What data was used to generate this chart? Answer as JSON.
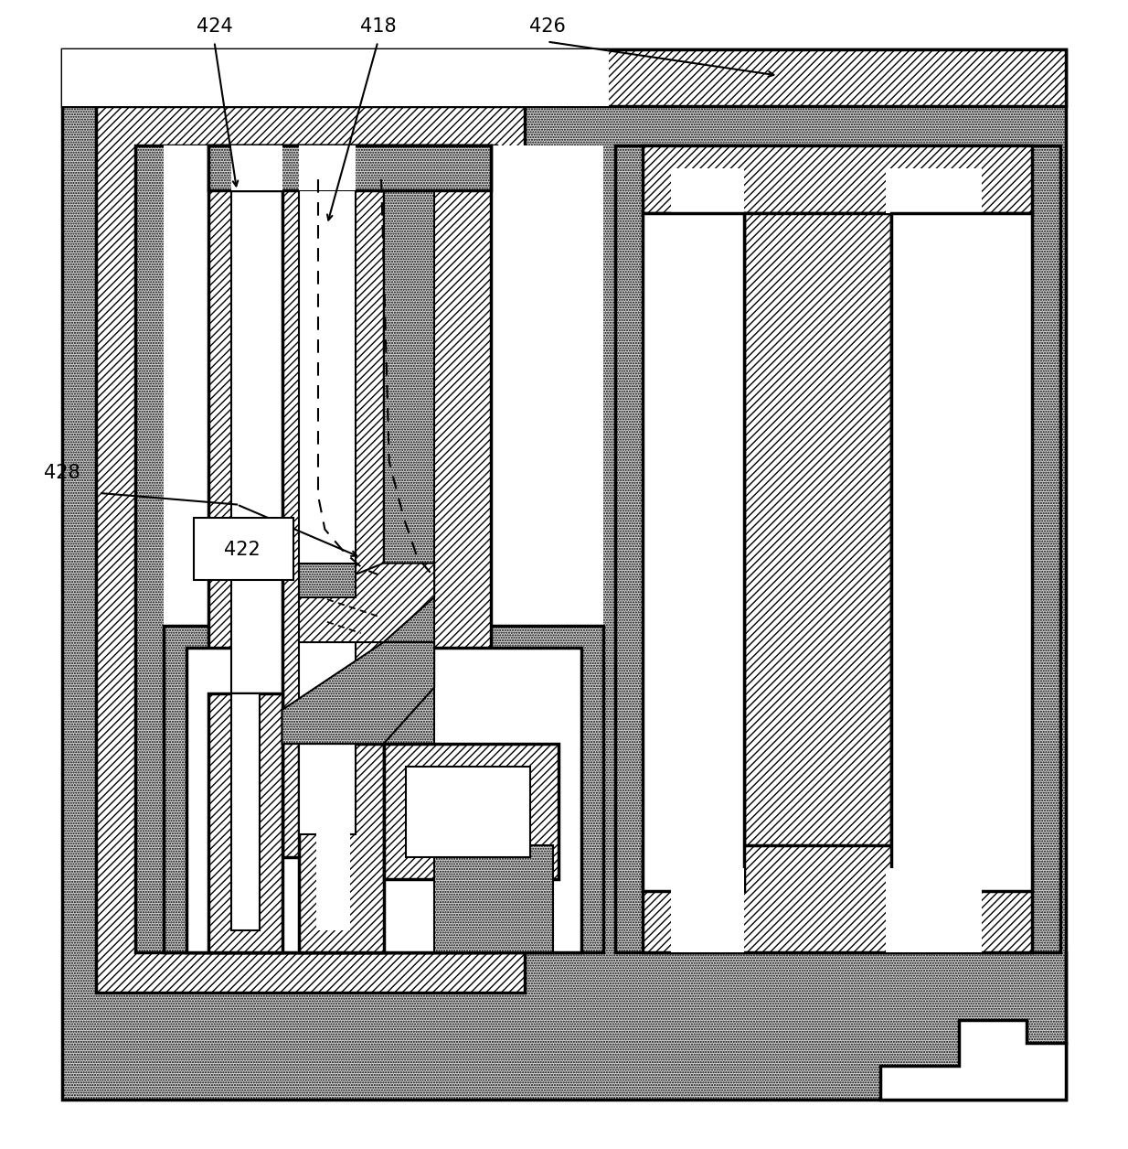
{
  "bg_color": "#ffffff",
  "stipple_color": "#d0d0d0",
  "lw_main": 2.5,
  "lw_thin": 1.5,
  "label_fontsize": 15,
  "hatch_diagonal": "////",
  "hatch_dot": "......"
}
